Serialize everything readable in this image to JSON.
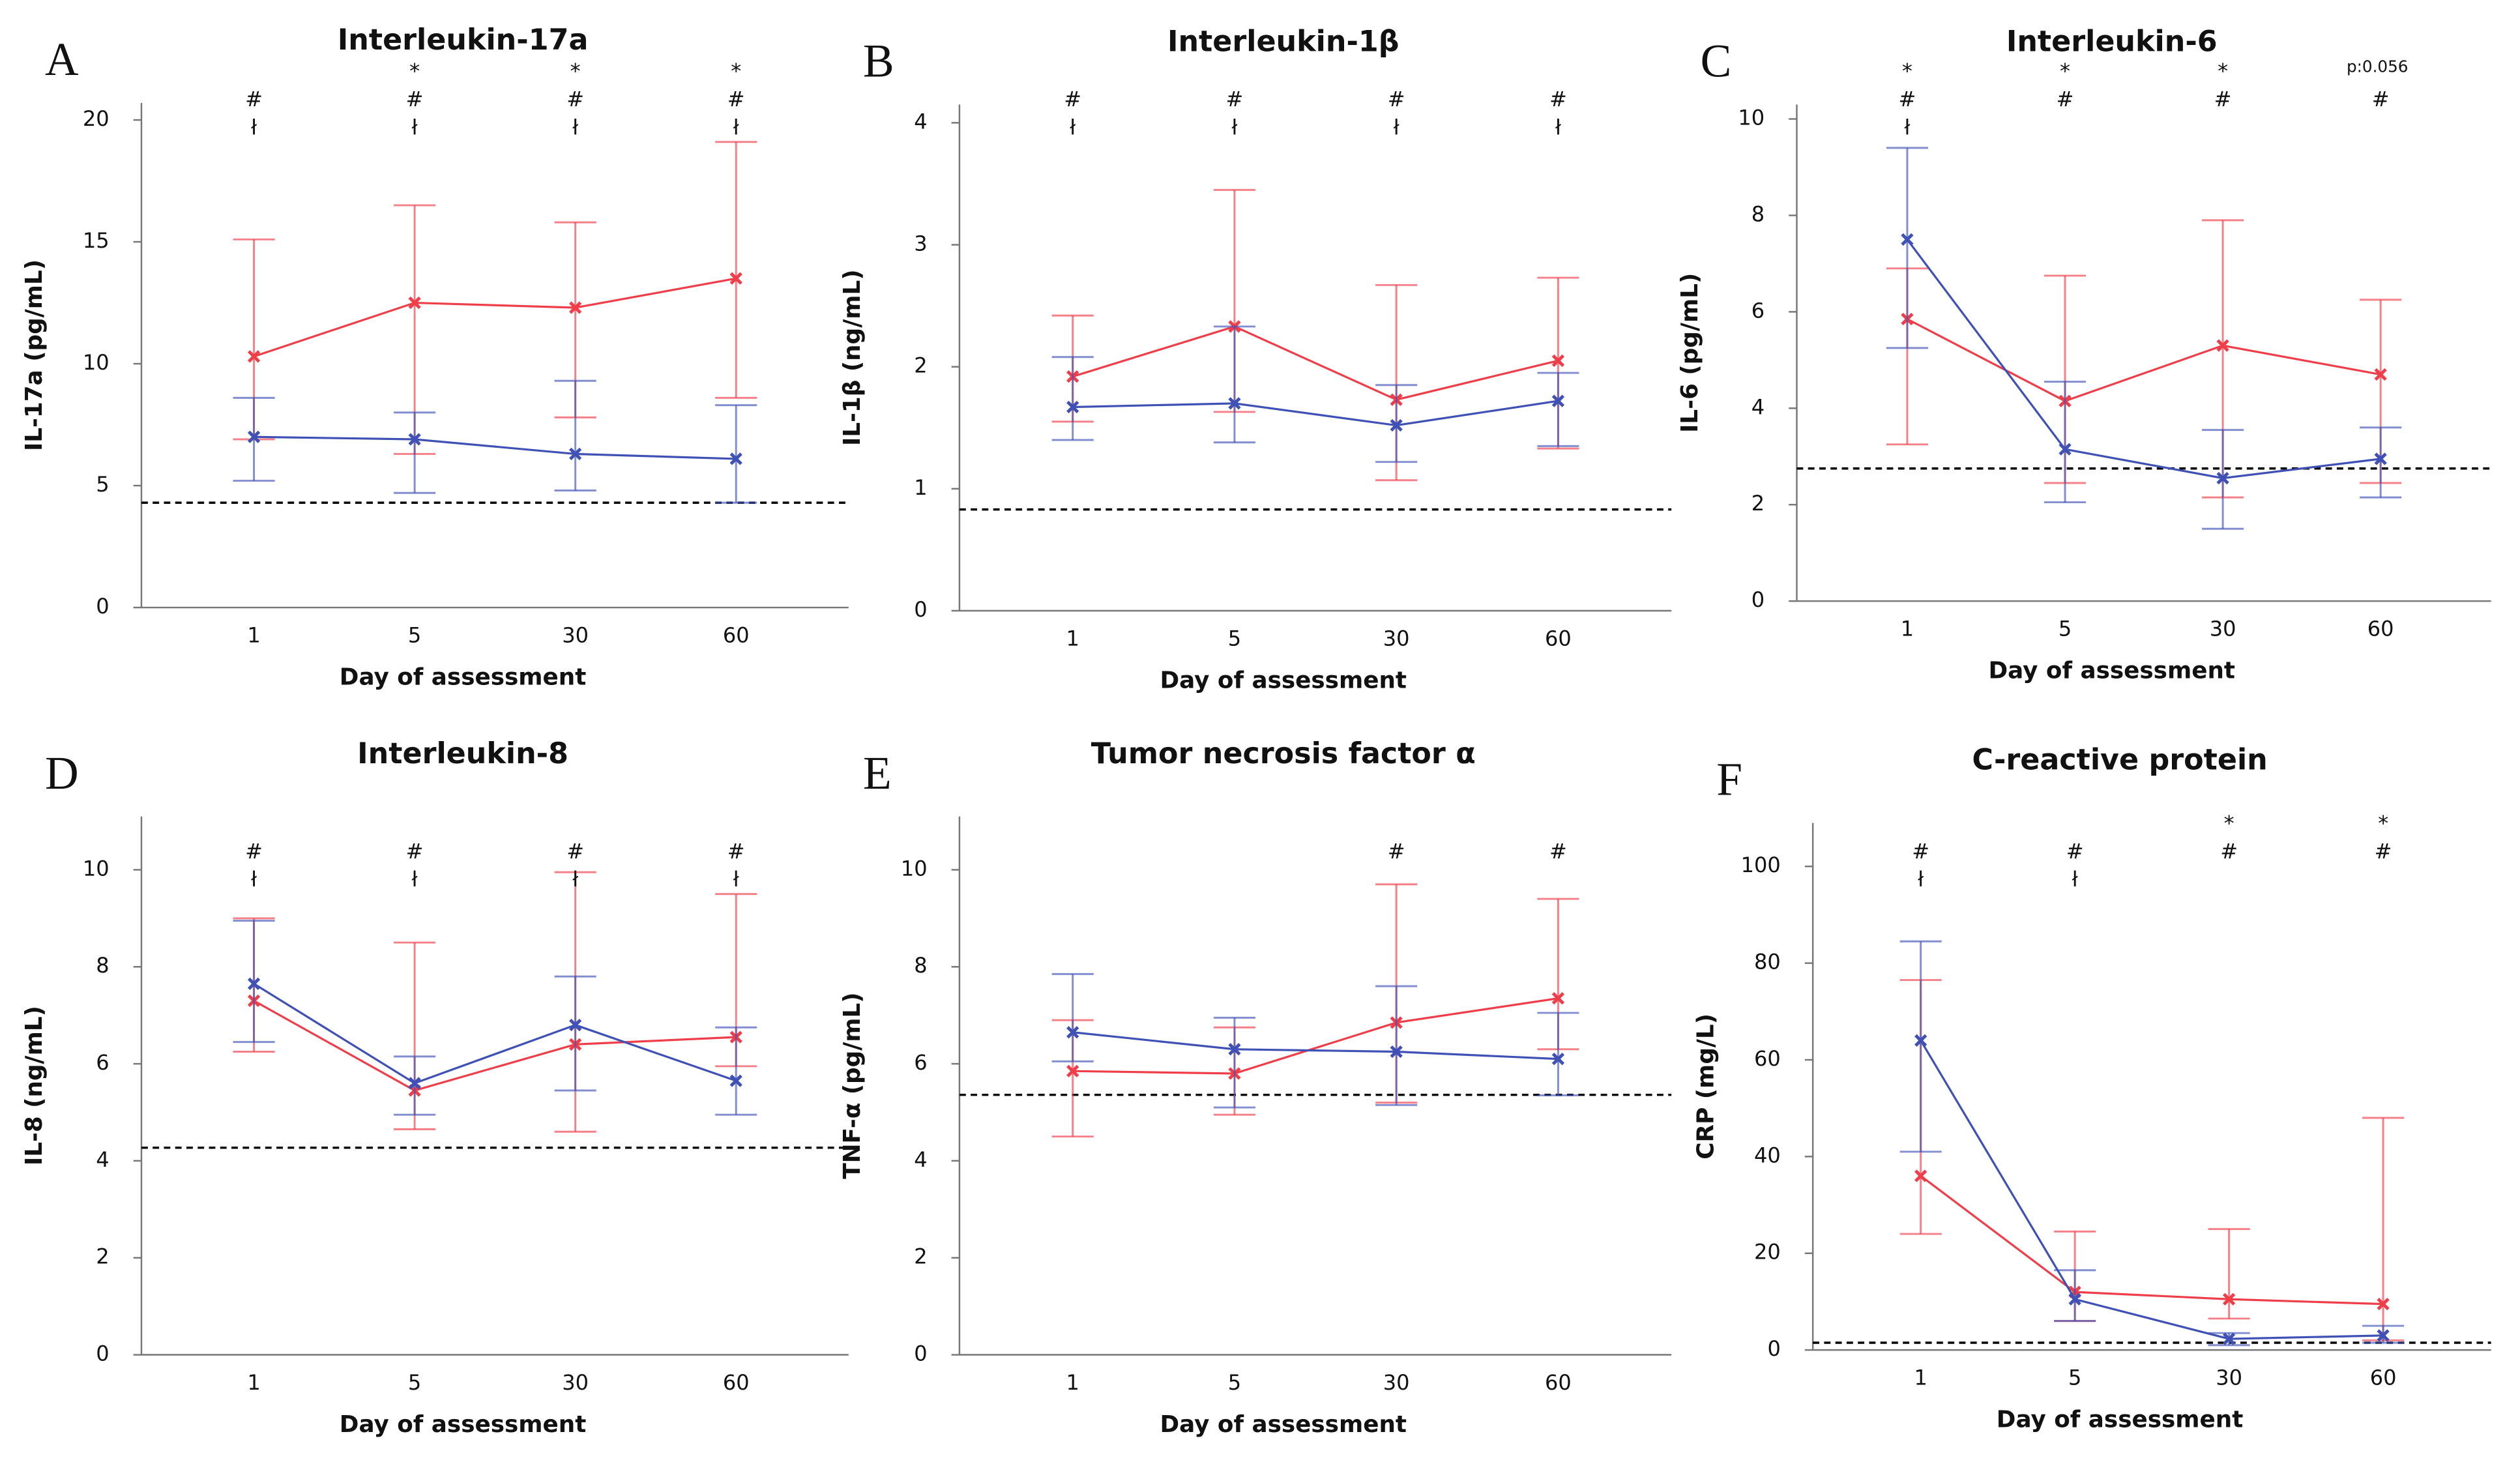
{
  "chart_data": [
    {
      "type": "line",
      "label": "A",
      "title": "Interleukin-17a",
      "ylabel": "IL-17a (pg/mL)",
      "xlabel": "Day of assessment",
      "categories": [
        "1",
        "5",
        "30",
        "60"
      ],
      "ylim": [
        0,
        20.7
      ],
      "yticks": [
        0,
        5,
        10,
        15,
        20
      ],
      "ref_line": 4.3,
      "series": [
        {
          "color": "#ee3e4a",
          "values": [
            10.3,
            12.5,
            12.3,
            13.5
          ],
          "lower": [
            6.9,
            6.3,
            7.8,
            8.6
          ],
          "upper": [
            15.1,
            16.5,
            15.8,
            19.1
          ]
        },
        {
          "color": "#3f51b5",
          "values": [
            7.0,
            6.9,
            6.3,
            6.1
          ],
          "lower": [
            5.2,
            4.7,
            4.8,
            4.3
          ],
          "upper": [
            8.6,
            8.0,
            9.3,
            8.3
          ]
        }
      ],
      "annotations": [
        [
          null,
          "*",
          "*",
          "*"
        ],
        [
          "#",
          "#",
          "#",
          "#"
        ],
        [
          "ł",
          "ł",
          "ł",
          "ł"
        ]
      ]
    },
    {
      "type": "line",
      "label": "B",
      "title": "Interleukin-1β",
      "ylabel": "IL-1β (ng/mL)",
      "xlabel": "Day of assessment",
      "categories": [
        "1",
        "5",
        "30",
        "60"
      ],
      "ylim": [
        0,
        4.15
      ],
      "yticks": [
        0,
        1,
        2,
        3,
        4
      ],
      "ref_line": 0.83,
      "series": [
        {
          "color": "#ee3e4a",
          "values": [
            1.92,
            2.33,
            1.73,
            2.05
          ],
          "lower": [
            1.55,
            1.63,
            1.07,
            1.33
          ],
          "upper": [
            2.42,
            3.45,
            2.67,
            2.73
          ]
        },
        {
          "color": "#3f51b5",
          "values": [
            1.67,
            1.7,
            1.52,
            1.72
          ],
          "lower": [
            1.4,
            1.38,
            1.22,
            1.35
          ],
          "upper": [
            2.08,
            2.33,
            1.85,
            1.95
          ]
        }
      ],
      "annotations": [
        [
          null,
          null,
          null,
          null
        ],
        [
          "#",
          "#",
          "#",
          "#"
        ],
        [
          "ł",
          "ł",
          "ł",
          "ł"
        ]
      ]
    },
    {
      "type": "line",
      "label": "C",
      "title": "Interleukin-6",
      "ylabel": "IL-6 (pg/mL)",
      "xlabel": "Day of assessment",
      "categories": [
        "1",
        "5",
        "30",
        "60"
      ],
      "ylim": [
        0,
        10.3
      ],
      "yticks": [
        0,
        2,
        4,
        6,
        8,
        10
      ],
      "ref_line": 2.75,
      "note": "p:0.056",
      "series": [
        {
          "color": "#ee3e4a",
          "values": [
            5.85,
            4.15,
            5.3,
            4.7
          ],
          "lower": [
            3.25,
            2.45,
            2.15,
            2.45
          ],
          "upper": [
            6.9,
            6.75,
            7.9,
            6.25
          ]
        },
        {
          "color": "#3f51b5",
          "values": [
            7.5,
            3.15,
            2.55,
            2.95
          ],
          "lower": [
            5.25,
            2.05,
            1.5,
            2.15
          ],
          "upper": [
            9.4,
            4.55,
            3.55,
            3.6
          ]
        }
      ],
      "annotations": [
        [
          "*",
          "*",
          "*",
          null
        ],
        [
          "#",
          "#",
          "#",
          "#"
        ],
        [
          "ł",
          null,
          null,
          null
        ]
      ]
    },
    {
      "type": "line",
      "label": "D",
      "title": "Interleukin-8",
      "ylabel": "IL-8 (ng/mL)",
      "xlabel": "Day of assessment",
      "categories": [
        "1",
        "5",
        "30",
        "60"
      ],
      "ylim": [
        0,
        11.1
      ],
      "yticks": [
        0,
        2,
        4,
        6,
        8,
        10
      ],
      "ref_line": 4.27,
      "series": [
        {
          "color": "#ee3e4a",
          "values": [
            7.3,
            5.45,
            6.4,
            6.55
          ],
          "lower": [
            6.25,
            4.65,
            4.6,
            5.95
          ],
          "upper": [
            9.0,
            8.5,
            9.95,
            9.5
          ]
        },
        {
          "color": "#3f51b5",
          "values": [
            7.65,
            5.6,
            6.8,
            5.65
          ],
          "lower": [
            6.45,
            4.95,
            5.45,
            4.95
          ],
          "upper": [
            8.95,
            6.15,
            7.8,
            6.75
          ]
        }
      ],
      "annotations": [
        [
          null,
          null,
          null,
          null
        ],
        [
          "#",
          "#",
          "#",
          "#"
        ],
        [
          "ł",
          "ł",
          "ł",
          "ł"
        ]
      ]
    },
    {
      "type": "line",
      "label": "E",
      "title": "Tumor necrosis factor α",
      "ylabel": "TNF-α (pg/mL)",
      "xlabel": "Day of assessment",
      "categories": [
        "1",
        "5",
        "30",
        "60"
      ],
      "ylim": [
        0,
        11.1
      ],
      "yticks": [
        0,
        2,
        4,
        6,
        8,
        10
      ],
      "ref_line": 5.36,
      "series": [
        {
          "color": "#ee3e4a",
          "values": [
            5.85,
            5.8,
            6.85,
            7.35
          ],
          "lower": [
            4.5,
            4.95,
            5.2,
            6.3
          ],
          "upper": [
            6.9,
            6.75,
            9.7,
            9.4
          ]
        },
        {
          "color": "#3f51b5",
          "values": [
            6.65,
            6.3,
            6.25,
            6.1
          ],
          "lower": [
            6.05,
            5.1,
            5.15,
            5.35
          ],
          "upper": [
            7.85,
            6.95,
            7.6,
            7.05
          ]
        }
      ],
      "annotations": [
        [
          null,
          null,
          null,
          null
        ],
        [
          null,
          null,
          "#",
          "#"
        ],
        [
          null,
          null,
          null,
          null
        ]
      ]
    },
    {
      "type": "line",
      "label": "F",
      "title": "C-reactive protein",
      "ylabel": "CRP (mg/L)",
      "xlabel": "Day of assessment",
      "categories": [
        "1",
        "5",
        "30",
        "60"
      ],
      "ylim": [
        0,
        109
      ],
      "yticks": [
        0,
        20,
        40,
        60,
        80,
        100
      ],
      "ref_line": 1.5,
      "series": [
        {
          "color": "#ee3e4a",
          "values": [
            36,
            12,
            10.5,
            9.5
          ],
          "lower": [
            24,
            6,
            6.5,
            2
          ],
          "upper": [
            76.5,
            24.5,
            25,
            48
          ]
        },
        {
          "color": "#3f51b5",
          "values": [
            64,
            10.5,
            2.3,
            3
          ],
          "lower": [
            41,
            6,
            1,
            1.5
          ],
          "upper": [
            84.5,
            16.5,
            3.5,
            5
          ]
        }
      ],
      "annotations": [
        [
          null,
          null,
          "*",
          "*"
        ],
        [
          "#",
          "#",
          "#",
          "#"
        ],
        [
          "ł",
          "ł",
          null,
          null
        ]
      ]
    }
  ]
}
